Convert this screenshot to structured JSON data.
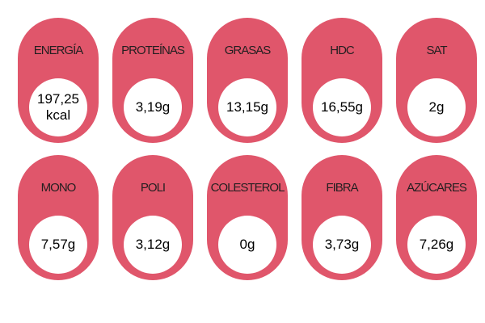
{
  "colors": {
    "card": "#e0566b",
    "circle": "#ffffff",
    "label_text": "#231f20",
    "value_text": "#000000"
  },
  "nutrients": [
    {
      "label": "ENERGÍA",
      "value": "197,25\nkcal"
    },
    {
      "label": "PROTEÍNAS",
      "value": "3,19g"
    },
    {
      "label": "GRASAS",
      "value": "13,15g"
    },
    {
      "label": "HDC",
      "value": "16,55g"
    },
    {
      "label": "SAT",
      "value": "2g"
    },
    {
      "label": "MONO",
      "value": "7,57g"
    },
    {
      "label": "POLI",
      "value": "3,12g"
    },
    {
      "label": "COLESTEROL",
      "value": "0g"
    },
    {
      "label": "FIBRA",
      "value": "3,73g"
    },
    {
      "label": "AZÚCARES",
      "value": "7,26g"
    }
  ]
}
